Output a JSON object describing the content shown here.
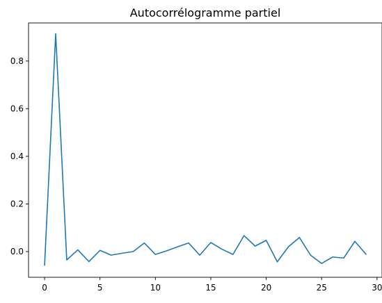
{
  "chart_data": {
    "type": "line",
    "title": "Autocorrélogramme partiel",
    "xlabel": "",
    "ylabel": "",
    "xlim": [
      -1.45,
      30.45
    ],
    "ylim": [
      -0.108,
      0.96
    ],
    "grid": false,
    "xticks": [
      0,
      5,
      10,
      15,
      20,
      25,
      30
    ],
    "xtick_labels": [
      "0",
      "5",
      "10",
      "15",
      "20",
      "25",
      "30"
    ],
    "yticks": [
      0.0,
      0.2,
      0.4,
      0.6,
      0.8
    ],
    "ytick_labels": [
      "0.0",
      "0.2",
      "0.4",
      "0.6",
      "0.8"
    ],
    "series": [
      {
        "color": "#1f77b4",
        "x": [
          0,
          1,
          2,
          3,
          4,
          5,
          6,
          7,
          8,
          9,
          10,
          11,
          12,
          13,
          14,
          15,
          16,
          17,
          18,
          19,
          20,
          21,
          22,
          23,
          24,
          25,
          26,
          27,
          28,
          29
        ],
        "y": [
          -0.057,
          0.915,
          -0.035,
          0.007,
          -0.042,
          0.005,
          -0.015,
          -0.007,
          0.0,
          0.036,
          -0.012,
          0.003,
          0.02,
          0.036,
          -0.015,
          0.038,
          0.01,
          -0.012,
          0.067,
          0.023,
          0.047,
          -0.043,
          0.02,
          0.059,
          -0.015,
          -0.05,
          -0.023,
          -0.027,
          0.043,
          -0.011
        ]
      }
    ]
  }
}
